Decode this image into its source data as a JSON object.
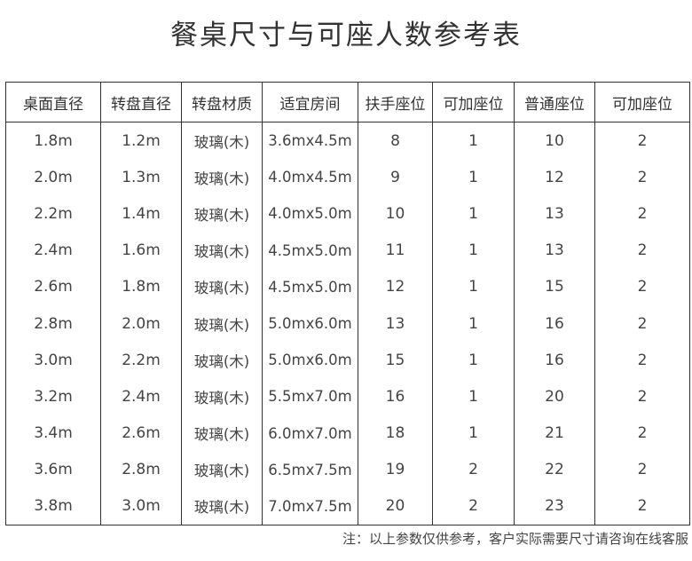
{
  "title": "餐桌尺寸与可座人数参考表",
  "table": {
    "headers": [
      "桌面直径",
      "转盘直径",
      "转盘材质",
      "适宜房间",
      "扶手座位",
      "可加座位",
      "普通座位",
      "可加座位"
    ],
    "rows": [
      [
        "1.8m",
        "1.2m",
        "玻璃(木)",
        "3.6mx4.5m",
        "8",
        "1",
        "10",
        "2"
      ],
      [
        "2.0m",
        "1.3m",
        "玻璃(木)",
        "4.0mx4.5m",
        "9",
        "1",
        "12",
        "2"
      ],
      [
        "2.2m",
        "1.4m",
        "玻璃(木)",
        "4.0mx5.0m",
        "10",
        "1",
        "13",
        "2"
      ],
      [
        "2.4m",
        "1.6m",
        "玻璃(木)",
        "4.5mx5.0m",
        "11",
        "1",
        "13",
        "2"
      ],
      [
        "2.6m",
        "1.8m",
        "玻璃(木)",
        "4.5mx5.0m",
        "12",
        "1",
        "15",
        "2"
      ],
      [
        "2.8m",
        "2.0m",
        "玻璃(木)",
        "5.0mx6.0m",
        "13",
        "1",
        "16",
        "2"
      ],
      [
        "3.0m",
        "2.2m",
        "玻璃(木)",
        "5.0mx6.0m",
        "15",
        "1",
        "16",
        "2"
      ],
      [
        "3.2m",
        "2.4m",
        "玻璃(木)",
        "5.5mx7.0m",
        "16",
        "1",
        "20",
        "2"
      ],
      [
        "3.4m",
        "2.6m",
        "玻璃(木)",
        "6.0mx7.0m",
        "18",
        "1",
        "21",
        "2"
      ],
      [
        "3.6m",
        "2.8m",
        "玻璃(木)",
        "6.5mx7.5m",
        "19",
        "2",
        "22",
        "2"
      ],
      [
        "3.8m",
        "3.0m",
        "玻璃(木)",
        "7.0mx7.5m",
        "20",
        "2",
        "23",
        "2"
      ]
    ]
  },
  "note": "注：以上参数仅供参考，客户实际需要尺寸请咨询在线客服"
}
